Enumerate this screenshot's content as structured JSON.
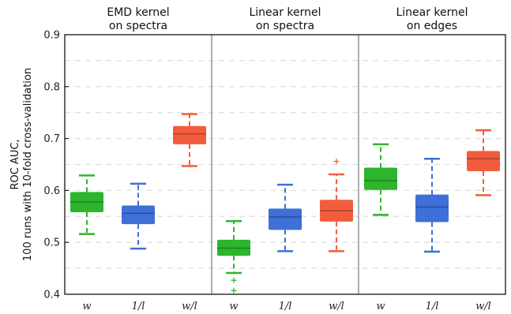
{
  "chart_data": {
    "type": "box",
    "ylabel": [
      "ROC AUC,",
      "100 runs with 10-fold cross-validation"
    ],
    "ylim": [
      0.4,
      0.9
    ],
    "yticks": [
      "0.4",
      "0.5",
      "0.6",
      "0.7",
      "0.8",
      "0.9"
    ],
    "grid": "horizontal dashed",
    "colors": {
      "w": "#2db52d",
      "1/l": "#3f6fd8",
      "w/l": "#f25c3c"
    },
    "panels": [
      {
        "title": [
          "EMD kernel",
          "on spectra"
        ],
        "boxes": [
          {
            "label": "w",
            "whisker_low": 0.516,
            "q1": 0.558,
            "median": 0.578,
            "q3": 0.597,
            "whisker_high": 0.629,
            "outliers": []
          },
          {
            "label": "1/l",
            "whisker_low": 0.488,
            "q1": 0.535,
            "median": 0.556,
            "q3": 0.571,
            "whisker_high": 0.613,
            "outliers": []
          },
          {
            "label": "w/l",
            "whisker_low": 0.647,
            "q1": 0.689,
            "median": 0.709,
            "q3": 0.724,
            "whisker_high": 0.747,
            "outliers": []
          }
        ]
      },
      {
        "title": [
          "Linear kernel",
          "on spectra"
        ],
        "boxes": [
          {
            "label": "w",
            "whisker_low": 0.441,
            "q1": 0.474,
            "median": 0.489,
            "q3": 0.505,
            "whisker_high": 0.541,
            "outliers": [
              0.427,
              0.407
            ]
          },
          {
            "label": "1/l",
            "whisker_low": 0.483,
            "q1": 0.524,
            "median": 0.549,
            "q3": 0.565,
            "whisker_high": 0.611,
            "outliers": []
          },
          {
            "label": "w/l",
            "whisker_low": 0.483,
            "q1": 0.54,
            "median": 0.561,
            "q3": 0.582,
            "whisker_high": 0.631,
            "outliers": [
              0.656
            ]
          }
        ]
      },
      {
        "title": [
          "Linear kernel",
          "on edges"
        ],
        "boxes": [
          {
            "label": "w",
            "whisker_low": 0.553,
            "q1": 0.601,
            "median": 0.619,
            "q3": 0.644,
            "whisker_high": 0.689,
            "outliers": []
          },
          {
            "label": "1/l",
            "whisker_low": 0.482,
            "q1": 0.539,
            "median": 0.568,
            "q3": 0.592,
            "whisker_high": 0.661,
            "outliers": []
          },
          {
            "label": "w/l",
            "whisker_low": 0.591,
            "q1": 0.637,
            "median": 0.661,
            "q3": 0.676,
            "whisker_high": 0.716,
            "outliers": []
          }
        ]
      }
    ]
  }
}
